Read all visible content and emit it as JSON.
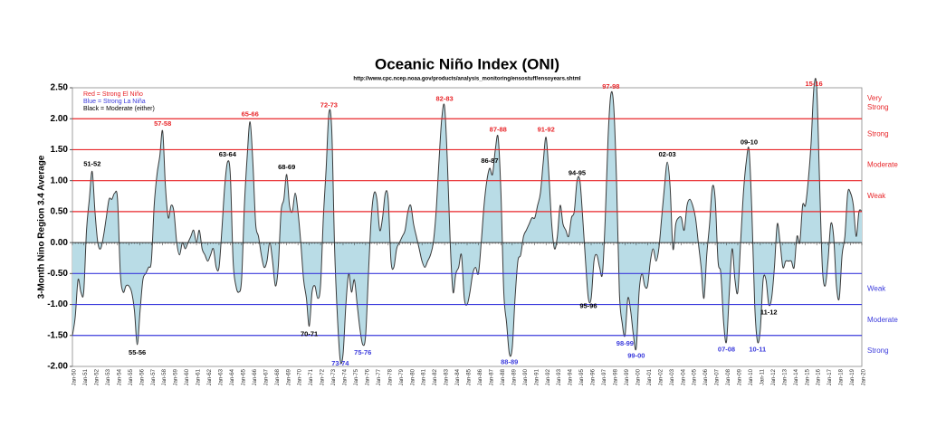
{
  "chart_data": {
    "type": "area",
    "title": "Oceanic Niño Index (ONI)",
    "subtitle": "http://www.cpc.ncep.noaa.gov/products/analysis_monitoring/ensostuff/ensoyears.shtml",
    "y_label": "3-Month Nino Region 3.4 Average",
    "legend_notes": [
      {
        "text": "Red = Strong  El Niño",
        "color": "#e8262a"
      },
      {
        "text": "Blue = Strong  La Niña",
        "color": "#3b3bdc"
      },
      {
        "text": "Black = Moderate  (either)",
        "color": "#000000"
      }
    ],
    "fill_color": "#b9dce6",
    "line_color": "#3a3a3a",
    "ylim": [
      -2.0,
      2.5
    ],
    "yticks": [
      {
        "value": 2.5,
        "label": "2.50"
      },
      {
        "value": 2.0,
        "label": "2.00"
      },
      {
        "value": 1.5,
        "label": "1.50"
      },
      {
        "value": 1.0,
        "label": "1.00"
      },
      {
        "value": 0.5,
        "label": "0.50"
      },
      {
        "value": 0,
        "label": "0.00"
      },
      {
        "value": -0.5,
        "label": "-0.50"
      },
      {
        "value": -1.0,
        "label": "-1.00"
      },
      {
        "value": -1.5,
        "label": "-1.50"
      },
      {
        "value": -2.0,
        "label": "-2.00"
      }
    ],
    "thresholds": {
      "el_nino": {
        "color": "#e8262a",
        "lines": [
          0.5,
          1.0,
          1.5,
          2.0
        ],
        "labels": [
          "Weak",
          "Moderate",
          "Strong",
          "Very Strong"
        ]
      },
      "la_nina": {
        "color": "#3b3bdc",
        "lines": [
          -0.5,
          -1.0,
          -1.5
        ],
        "labels": [
          "Weak",
          "Moderate",
          "Strong"
        ]
      }
    },
    "annotations": {
      "el_nino": [
        {
          "label": "51-52",
          "color": "#000000"
        },
        {
          "label": "57-58",
          "color": "#e8262a"
        },
        {
          "label": "63-64",
          "color": "#000000"
        },
        {
          "label": "65-66",
          "color": "#e8262a"
        },
        {
          "label": "68-69",
          "color": "#000000"
        },
        {
          "label": "72-73",
          "color": "#e8262a"
        },
        {
          "label": "82-83",
          "color": "#e8262a"
        },
        {
          "label": "86-87",
          "color": "#000000"
        },
        {
          "label": "87-88",
          "color": "#e8262a"
        },
        {
          "label": "91-92",
          "color": "#e8262a"
        },
        {
          "label": "94-95",
          "color": "#000000"
        },
        {
          "label": "97-98",
          "color": "#e8262a"
        },
        {
          "label": "02-03",
          "color": "#000000"
        },
        {
          "label": "09-10",
          "color": "#000000"
        },
        {
          "label": "15-16",
          "color": "#e8262a"
        }
      ],
      "la_nina": [
        {
          "label": "55-56",
          "color": "#000000"
        },
        {
          "label": "70-71",
          "color": "#000000"
        },
        {
          "label": "73-74",
          "color": "#3b3bdc"
        },
        {
          "label": "75-76",
          "color": "#3b3bdc"
        },
        {
          "label": "88-89",
          "color": "#3b3bdc"
        },
        {
          "label": "95-96",
          "color": "#000000"
        },
        {
          "label": "98-99",
          "color": "#3b3bdc"
        },
        {
          "label": "99-00",
          "color": "#3b3bdc"
        },
        {
          "label": "07-08",
          "color": "#3b3bdc"
        },
        {
          "label": "10-11",
          "color": "#3b3bdc"
        },
        {
          "label": "11-12",
          "color": "#000000"
        }
      ]
    },
    "categories": [
      "Jan-50",
      null,
      null,
      null,
      "Jan-51",
      null,
      null,
      null,
      "Jan-52",
      null,
      null,
      null,
      "Jan-53",
      null,
      null,
      null,
      "Jan-54",
      null,
      null,
      null,
      "Jan-55",
      null,
      null,
      null,
      "Jan-56",
      null,
      null,
      null,
      "Jan-57",
      null,
      null,
      null,
      "Jan-58",
      null,
      null,
      null,
      "Jan-59",
      null,
      null,
      null,
      "Jan-60",
      null,
      null,
      null,
      "Jan-61",
      null,
      null,
      null,
      "Jan-62",
      null,
      null,
      null,
      "Jan-63",
      null,
      null,
      null,
      "Jan-64",
      null,
      null,
      null,
      "Jan-65",
      null,
      null,
      null,
      "Jan-66",
      null,
      null,
      null,
      "Jan-67",
      null,
      null,
      null,
      "Jan-68",
      null,
      null,
      null,
      "Jan-69",
      null,
      null,
      null,
      "Jan-70",
      null,
      null,
      null,
      "Jan-71",
      null,
      null,
      null,
      "Jan-72",
      null,
      null,
      null,
      "Jan-73",
      null,
      null,
      null,
      "Jan-74",
      null,
      null,
      null,
      "Jan-75",
      null,
      null,
      null,
      "Jan-76",
      null,
      null,
      null,
      "Jan-77",
      null,
      null,
      null,
      "Jan-78",
      null,
      null,
      null,
      "Jan-79",
      null,
      null,
      null,
      "Jan-80",
      null,
      null,
      null,
      "Jan-81",
      null,
      null,
      null,
      "Jan-82",
      null,
      null,
      null,
      "Jan-83",
      null,
      null,
      null,
      "Jan-84",
      null,
      null,
      null,
      "Jan-85",
      null,
      null,
      null,
      "Jan-86",
      null,
      null,
      null,
      "Jan-87",
      null,
      null,
      null,
      "Jan-88",
      null,
      null,
      null,
      "Jan-89",
      null,
      null,
      null,
      "Jan-90",
      null,
      null,
      null,
      "Jan-91",
      null,
      null,
      null,
      "Jan-92",
      null,
      null,
      null,
      "Jan-93",
      null,
      null,
      null,
      "Jan-94",
      null,
      null,
      null,
      "Jan-95",
      null,
      null,
      null,
      "Jan-96",
      null,
      null,
      null,
      "Jan-97",
      null,
      null,
      null,
      "Jan-98",
      null,
      null,
      null,
      "Jan-99",
      null,
      null,
      null,
      "Jan-00",
      null,
      null,
      null,
      "Jan-01",
      null,
      null,
      null,
      "Jan-02",
      null,
      null,
      null,
      "Jan-03",
      null,
      null,
      null,
      "Jan-04",
      null,
      null,
      null,
      "Jan-05",
      null,
      null,
      null,
      "Jan-06",
      null,
      null,
      null,
      "Jan-07",
      null,
      null,
      null,
      "Jan-08",
      null,
      null,
      null,
      "Jan-09",
      null,
      null,
      null,
      "Jan-10",
      null,
      null,
      null,
      "Jan-11",
      null,
      null,
      null,
      "Jan-12",
      null,
      null,
      null,
      "Jan-13",
      null,
      null,
      null,
      "Jan-14",
      null,
      null,
      null,
      "Jan-15",
      null,
      null,
      null,
      "Jan-16",
      null,
      null,
      null,
      "Jan-17",
      null,
      null,
      null,
      "Jan-18",
      null,
      null,
      null,
      "Jan-19",
      null,
      null,
      null,
      "Jan-20"
    ],
    "values": [
      -1.5,
      -1.2,
      -0.6,
      -0.8,
      -0.8,
      0.2,
      0.7,
      1.15,
      0.5,
      0.0,
      -0.1,
      0.1,
      0.4,
      0.7,
      0.7,
      0.8,
      0.7,
      -0.5,
      -0.8,
      -0.7,
      -0.7,
      -0.8,
      -1.1,
      -1.65,
      -1.1,
      -0.6,
      -0.5,
      -0.4,
      -0.3,
      0.6,
      1.1,
      1.4,
      1.8,
      0.9,
      0.4,
      0.6,
      0.5,
      0.0,
      -0.2,
      0.0,
      -0.1,
      0.0,
      0.1,
      0.2,
      0.0,
      0.2,
      -0.1,
      -0.2,
      -0.3,
      -0.2,
      -0.1,
      -0.4,
      -0.4,
      0.2,
      0.9,
      1.3,
      1.1,
      -0.3,
      -0.7,
      -0.8,
      -0.6,
      0.6,
      1.4,
      1.95,
      1.3,
      0.3,
      0.1,
      -0.2,
      -0.4,
      -0.3,
      0.0,
      -0.3,
      -0.7,
      -0.4,
      0.5,
      0.7,
      1.1,
      0.6,
      0.5,
      0.8,
      0.5,
      0.0,
      -0.6,
      -0.9,
      -1.35,
      -0.8,
      -0.7,
      -0.9,
      -0.7,
      0.4,
      1.2,
      2.1,
      1.8,
      -0.1,
      -1.2,
      -1.9,
      -1.8,
      -1.0,
      -0.5,
      -0.8,
      -0.6,
      -1.0,
      -1.4,
      -1.65,
      -1.5,
      -0.5,
      0.4,
      0.8,
      0.7,
      0.2,
      0.4,
      0.8,
      0.7,
      -0.3,
      -0.4,
      -0.1,
      0.0,
      0.1,
      0.2,
      0.5,
      0.6,
      0.3,
      0.1,
      -0.1,
      -0.3,
      -0.4,
      -0.3,
      -0.2,
      0.0,
      0.5,
      1.3,
      2.0,
      2.2,
      1.3,
      0.0,
      -0.8,
      -0.5,
      -0.4,
      -0.2,
      -0.9,
      -1.0,
      -0.8,
      -0.5,
      -0.4,
      -0.5,
      0.0,
      0.6,
      1.0,
      1.2,
      1.1,
      1.5,
      1.7,
      0.8,
      -0.8,
      -1.3,
      -1.8,
      -1.7,
      -0.9,
      -0.3,
      -0.2,
      0.1,
      0.2,
      0.3,
      0.4,
      0.4,
      0.6,
      0.8,
      1.3,
      1.7,
      1.1,
      0.3,
      -0.1,
      0.1,
      0.6,
      0.3,
      0.2,
      0.1,
      0.4,
      0.5,
      1.0,
      1.0,
      0.4,
      -0.3,
      -0.9,
      -0.9,
      -0.3,
      -0.2,
      -0.4,
      -0.5,
      0.4,
      1.7,
      2.4,
      2.2,
      1.0,
      -0.8,
      -1.3,
      -1.5,
      -0.9,
      -1.1,
      -1.5,
      -1.7,
      -0.8,
      -0.5,
      -0.7,
      -0.7,
      -0.3,
      -0.1,
      -0.3,
      -0.1,
      0.4,
      0.9,
      1.3,
      0.9,
      -0.1,
      0.3,
      0.4,
      0.4,
      0.2,
      0.6,
      0.7,
      0.6,
      0.4,
      0.0,
      -0.4,
      -0.9,
      -0.2,
      0.3,
      0.9,
      0.7,
      -0.3,
      -0.5,
      -1.3,
      -1.6,
      -0.8,
      -0.1,
      -0.6,
      -0.8,
      0.0,
      0.8,
      1.3,
      1.5,
      0.5,
      -1.0,
      -1.6,
      -1.4,
      -0.6,
      -0.6,
      -1.0,
      -0.9,
      -0.4,
      0.3,
      0.0,
      -0.4,
      -0.3,
      -0.3,
      -0.3,
      -0.4,
      0.1,
      0.0,
      0.6,
      0.6,
      1.0,
      1.6,
      2.5,
      2.5,
      1.0,
      -0.4,
      -0.7,
      -0.3,
      0.3,
      0.1,
      -0.7,
      -0.9,
      -0.2,
      0.1,
      0.8,
      0.8,
      0.6,
      0.1,
      0.5,
      0.5
    ]
  }
}
